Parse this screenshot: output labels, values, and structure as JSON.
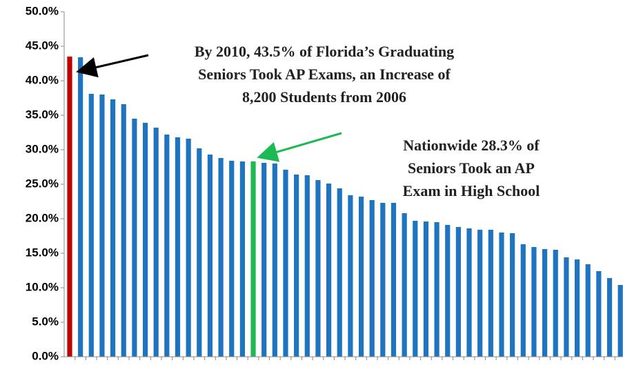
{
  "chart_data": {
    "type": "bar",
    "categories": [
      null,
      null,
      null,
      null,
      null,
      null,
      null,
      null,
      null,
      null,
      null,
      null,
      null,
      null,
      null,
      null,
      null,
      null,
      null,
      null,
      null,
      null,
      null,
      null,
      null,
      null,
      null,
      null,
      null,
      null,
      null,
      null,
      null,
      null,
      null,
      null,
      null,
      null,
      null,
      null,
      null,
      null,
      null,
      null,
      null,
      null,
      null,
      null,
      null,
      null,
      null,
      null
    ],
    "values": [
      43.5,
      43.4,
      38.1,
      38.0,
      37.3,
      36.6,
      34.5,
      33.9,
      33.2,
      32.2,
      31.8,
      31.6,
      30.2,
      29.3,
      28.8,
      28.4,
      28.3,
      28.3,
      28.1,
      28.0,
      27.1,
      26.4,
      26.3,
      25.6,
      25.1,
      24.4,
      23.4,
      23.2,
      22.7,
      22.3,
      22.3,
      20.8,
      19.7,
      19.6,
      19.5,
      19.1,
      18.8,
      18.6,
      18.4,
      18.4,
      18.0,
      17.9,
      16.3,
      15.9,
      15.6,
      15.5,
      14.4,
      14.1,
      13.4,
      12.4,
      11.4,
      10.4
    ],
    "colors": [
      "#c00000",
      "#1f74c0",
      "#1f74c0",
      "#1f74c0",
      "#1f74c0",
      "#1f74c0",
      "#1f74c0",
      "#1f74c0",
      "#1f74c0",
      "#1f74c0",
      "#1f74c0",
      "#1f74c0",
      "#1f74c0",
      "#1f74c0",
      "#1f74c0",
      "#1f74c0",
      "#1f74c0",
      "#1db954",
      "#1f74c0",
      "#1f74c0",
      "#1f74c0",
      "#1f74c0",
      "#1f74c0",
      "#1f74c0",
      "#1f74c0",
      "#1f74c0",
      "#1f74c0",
      "#1f74c0",
      "#1f74c0",
      "#1f74c0",
      "#1f74c0",
      "#1f74c0",
      "#1f74c0",
      "#1f74c0",
      "#1f74c0",
      "#1f74c0",
      "#1f74c0",
      "#1f74c0",
      "#1f74c0",
      "#1f74c0",
      "#1f74c0",
      "#1f74c0",
      "#1f74c0",
      "#1f74c0",
      "#1f74c0",
      "#1f74c0",
      "#1f74c0",
      "#1f74c0",
      "#1f74c0",
      "#1f74c0",
      "#1f74c0",
      "#1f74c0"
    ],
    "ylim": [
      0,
      50
    ],
    "yticks": [
      {
        "value": 0,
        "label": "0.0%"
      },
      {
        "value": 5,
        "label": "5.0%"
      },
      {
        "value": 10,
        "label": "10.0%"
      },
      {
        "value": 15,
        "label": "15.0%"
      },
      {
        "value": 20,
        "label": "20.0%"
      },
      {
        "value": 25,
        "label": "25.0%"
      },
      {
        "value": 30,
        "label": "30.0%"
      },
      {
        "value": 35,
        "label": "35.0%"
      },
      {
        "value": 40,
        "label": "40.0%"
      },
      {
        "value": 45,
        "label": "45.0%"
      },
      {
        "value": 50,
        "label": "50.0%"
      }
    ],
    "annotations": [
      {
        "lines": [
          "By 2010, 43.5% of Florida’s Graduating",
          "Seniors Took AP Exams, an Increase of",
          "8,200 Students from 2006"
        ]
      },
      {
        "lines": [
          "Nationwide 28.3% of",
          "Seniors Took an AP",
          "Exam in High School"
        ]
      }
    ]
  }
}
